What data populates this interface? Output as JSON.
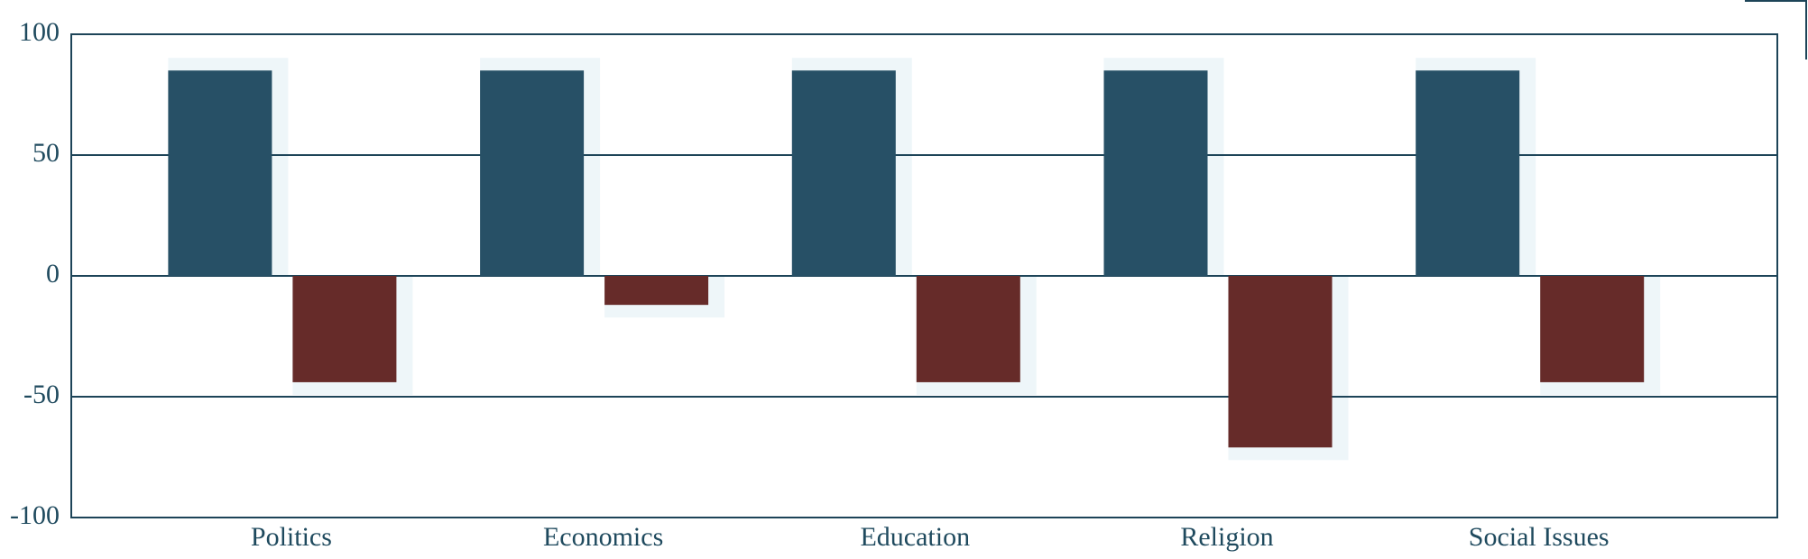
{
  "chart_data": {
    "type": "bar",
    "categories": [
      "Politics",
      "Economics",
      "Education",
      "Religion",
      "Social Issues"
    ],
    "series": [
      {
        "color": "#275066",
        "values": [
          85,
          85,
          85,
          85,
          85
        ]
      },
      {
        "color": "#662b29",
        "values": [
          -44,
          -12,
          -44,
          -71,
          -44
        ]
      }
    ],
    "ylim": [
      -100,
      100
    ],
    "yticks": [
      -100,
      -50,
      0,
      50,
      100
    ],
    "grid": true
  }
}
